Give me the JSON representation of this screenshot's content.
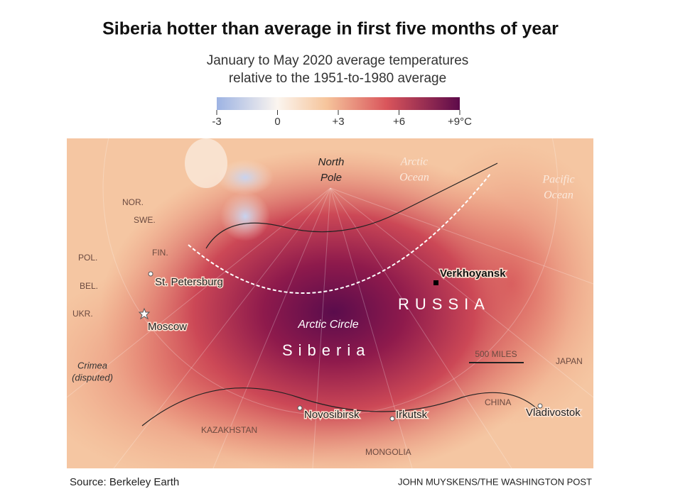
{
  "header": {
    "title": "Siberia hotter than average in first five months of year",
    "subtitle": [
      "January to May 2020 average temperatures",
      "relative to the 1951-to-1980 average"
    ]
  },
  "legend": {
    "range": [
      -3,
      9
    ],
    "ticks": [
      {
        "value": -3,
        "label": "-3"
      },
      0,
      {
        "value": 3,
        "label": "+3"
      },
      {
        "value": 6,
        "label": "+6"
      },
      {
        "value": 9,
        "label": "+9°C"
      }
    ]
  },
  "map": {
    "labels": [
      "North",
      "Pole",
      "Arctic",
      "Ocean",
      "Pacific",
      "Ocean",
      "NOR.",
      "SWE.",
      "FIN.",
      "POL.",
      "BEL.",
      "UKR.",
      "St. Petersburg",
      "Moscow",
      "Crimea",
      "(disputed)",
      "Verkhoyansk",
      "RUSSIA",
      "Arctic Circle",
      "Siberia",
      "500 MILES",
      "JAPAN",
      "CHINA",
      "Vladivostok",
      "Novosibirsk",
      "Irkutsk",
      "KAZAKHSTAN",
      "MONGOLIA"
    ]
  },
  "footer": {
    "source": "Source: Berkeley Earth",
    "credit": "JOHN MUYSKENS/THE WASHINGTON POST"
  }
}
